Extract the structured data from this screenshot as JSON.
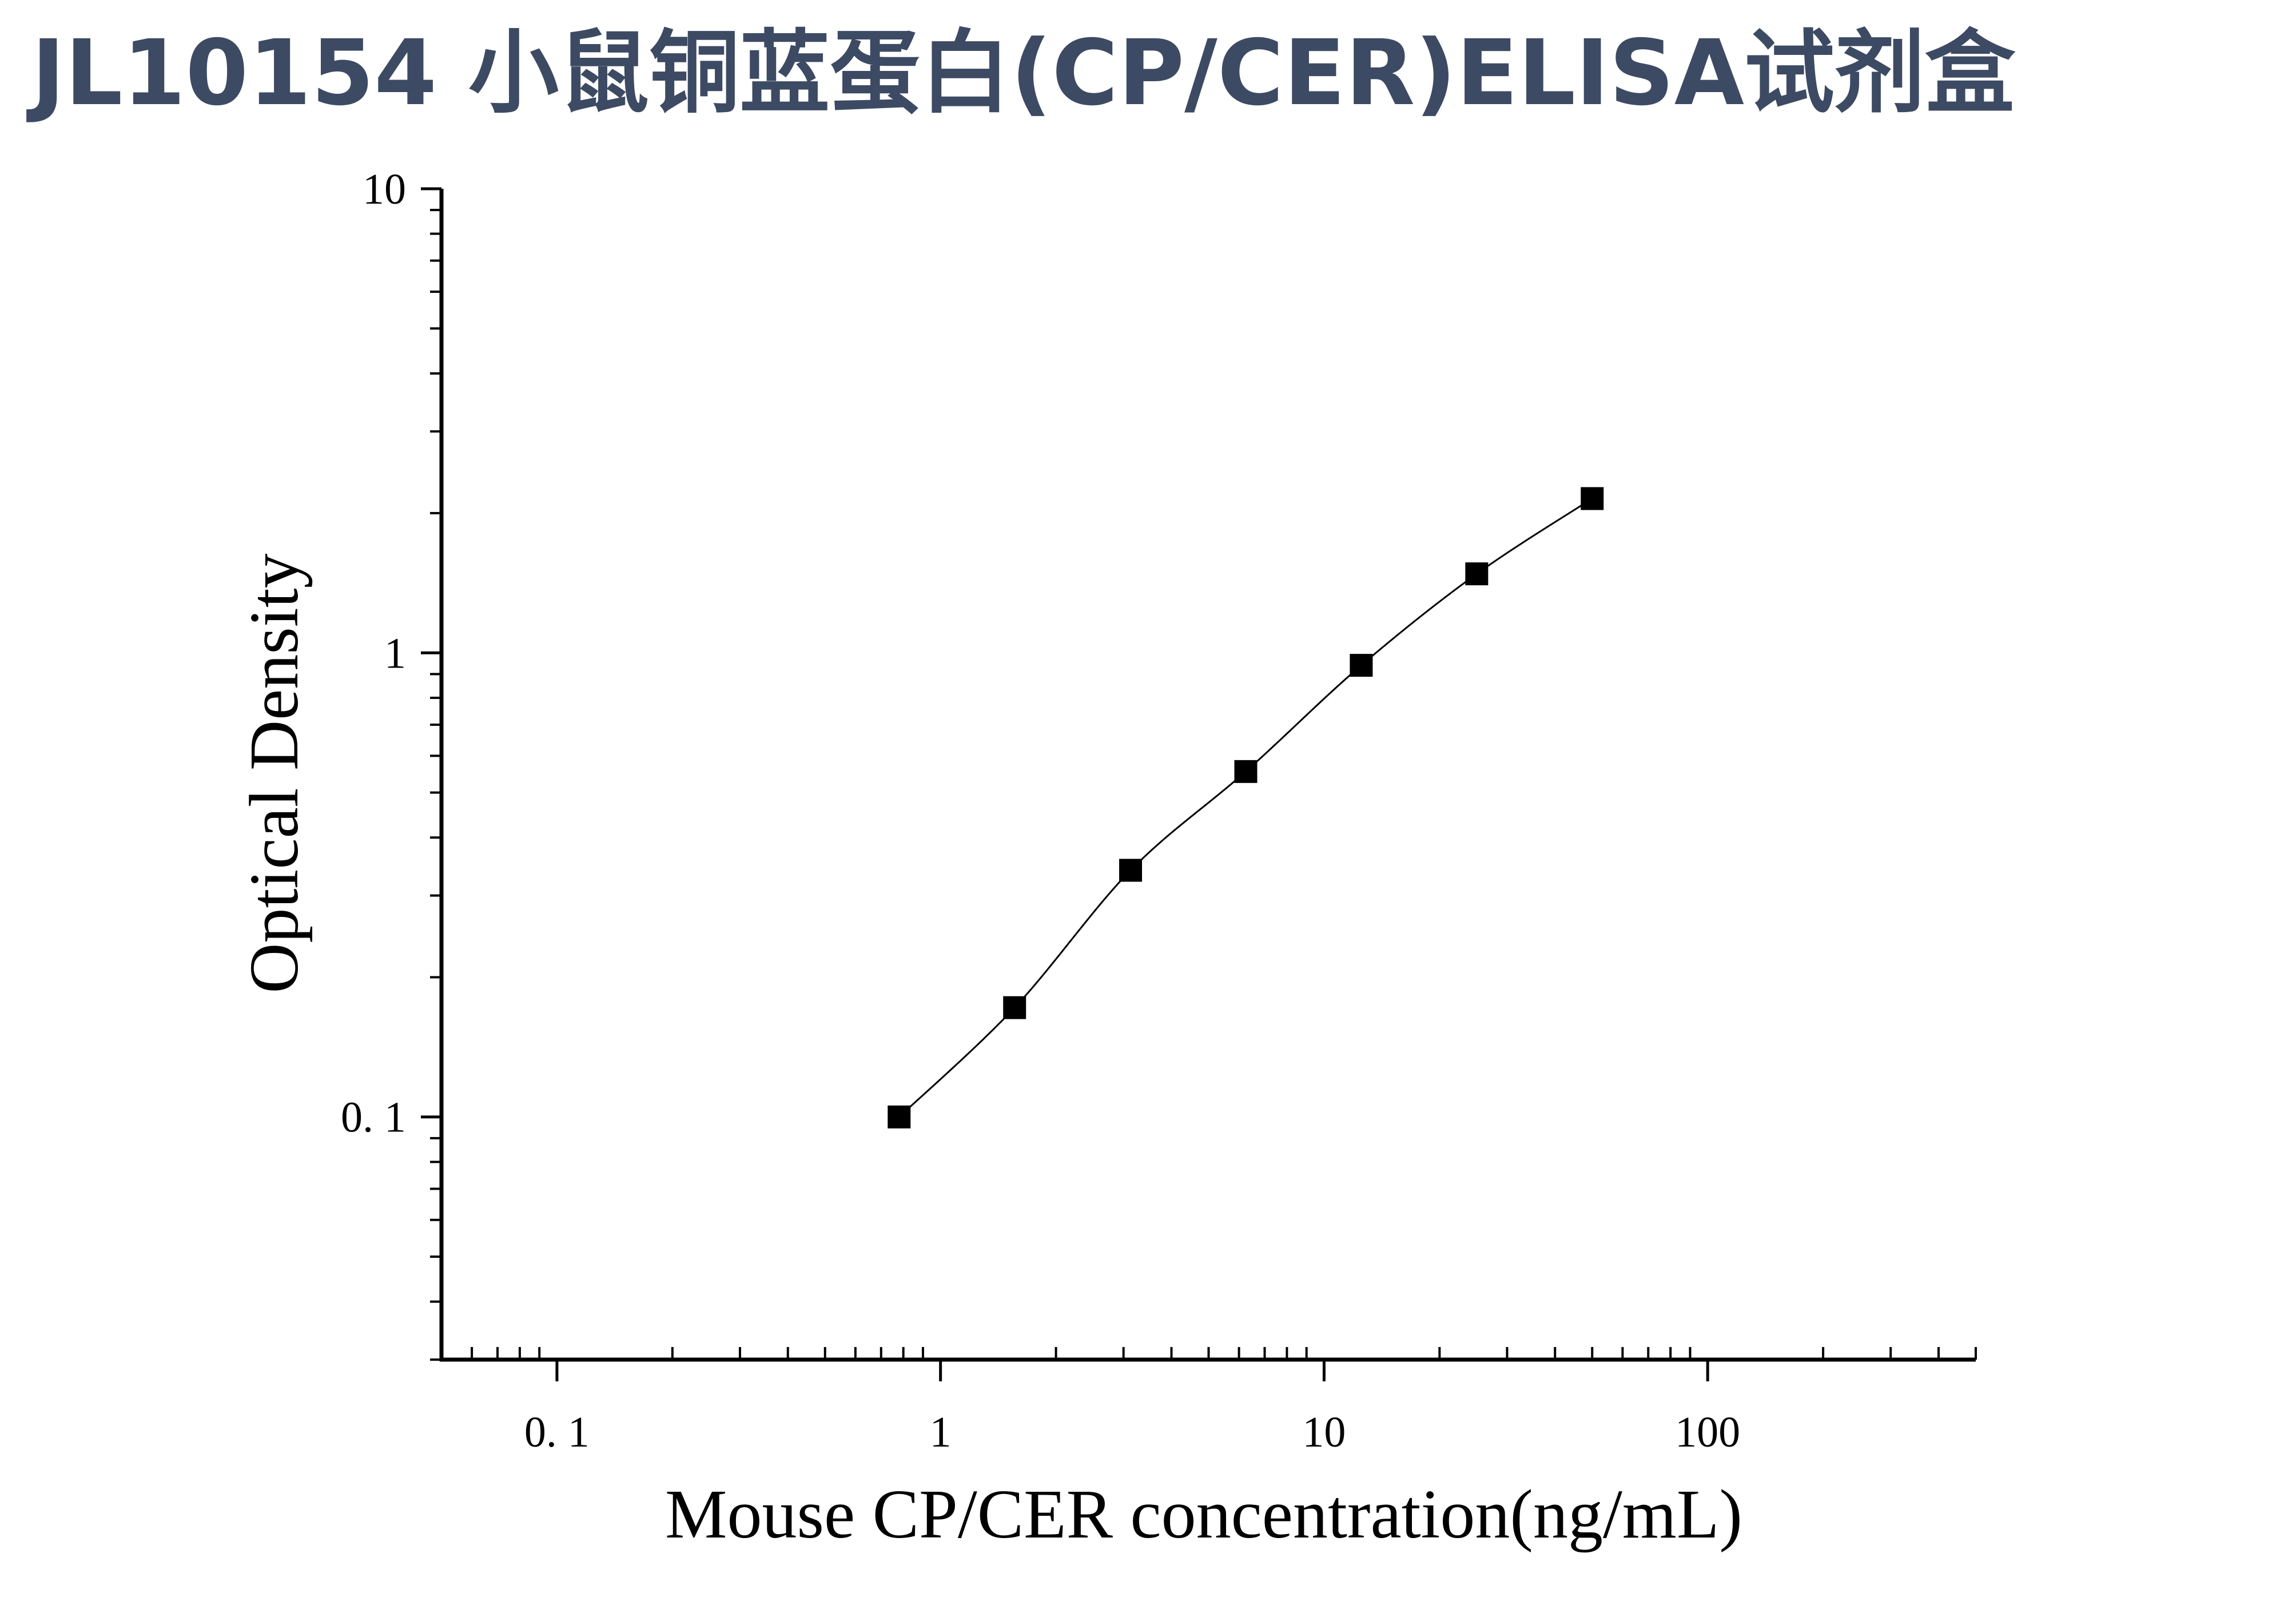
{
  "title": "JL10154 小鼠铜蓝蛋白(CP/CER)ELISA试剂盒",
  "chart_data": {
    "type": "line",
    "title": "JL10154 小鼠铜蓝蛋白(CP/CER)ELISA试剂盒",
    "xlabel": "Mouse CP/CER concentration(ng/mL)",
    "ylabel": "Optical Density",
    "xscale": "log",
    "yscale": "log",
    "xlim": [
      0.05,
      500
    ],
    "ylim": [
      0.03,
      10
    ],
    "xticks": [
      {
        "value": 0.1,
        "label": "0. 1"
      },
      {
        "value": 1,
        "label": "1"
      },
      {
        "value": 10,
        "label": "10"
      },
      {
        "value": 100,
        "label": "100"
      }
    ],
    "yticks": [
      {
        "value": 0.1,
        "label": "0. 1"
      },
      {
        "value": 1,
        "label": "1"
      },
      {
        "value": 10,
        "label": "10"
      }
    ],
    "grid": false,
    "legend": "none",
    "marker": "square",
    "series": [
      {
        "x": [
          0.78,
          1.56,
          3.13,
          6.25,
          12.5,
          25,
          50
        ],
        "y": [
          0.1,
          0.172,
          0.34,
          0.555,
          0.94,
          1.48,
          2.15
        ]
      }
    ],
    "colors": {
      "line": "#000000",
      "marker": "#000000",
      "axis": "#000000",
      "title": "#3d4a63"
    }
  }
}
